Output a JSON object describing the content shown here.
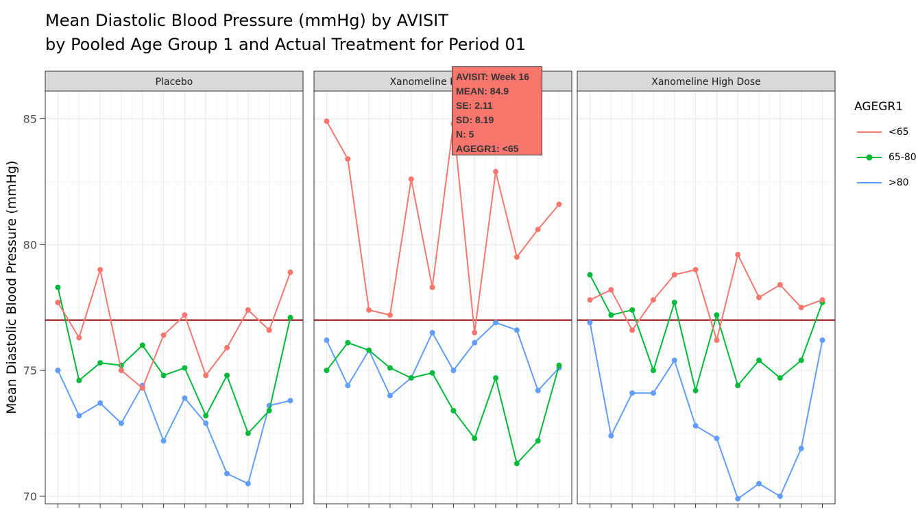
{
  "title": {
    "line1": "Mean Diastolic Blood Pressure (mmHg) by AVISIT",
    "line2": "by Pooled Age Group 1 and Actual Treatment for Period 01"
  },
  "y_axis_label": "Mean Diastolic Blood Pressure (mmHg)",
  "legend": {
    "title": "AGEGR1",
    "items": [
      {
        "label": "<65",
        "color": "#f8766d"
      },
      {
        "label": "65-80",
        "color": "#00ba38"
      },
      {
        "label": ">80",
        "color": "#619cff"
      }
    ]
  },
  "tooltip": {
    "avisit": "AVISIT: Week 16",
    "mean": "MEAN: 84.9",
    "se": "SE: 2.11",
    "sd": "SD: 8.19",
    "n": "N: 5",
    "agegr1": "AGEGR1: <65"
  },
  "chart_data": {
    "type": "line",
    "ylim": [
      69.7,
      86.1
    ],
    "yticks": [
      70,
      75,
      80,
      85
    ],
    "reference_line": 77.0,
    "reference_color": "#8b0000",
    "grid": true,
    "legend_position": "right",
    "panels": [
      {
        "name": "Placebo",
        "series": [
          {
            "name": "<65",
            "x": [
              1,
              2,
              3,
              4,
              5,
              6,
              7,
              8,
              9,
              10,
              11,
              12
            ],
            "values": [
              77.7,
              76.3,
              79.0,
              75.0,
              74.3,
              76.4,
              77.2,
              74.8,
              75.9,
              77.4,
              76.6,
              78.9
            ]
          },
          {
            "name": "65-80",
            "x": [
              1,
              2,
              3,
              4,
              5,
              6,
              7,
              8,
              9,
              10,
              11,
              12
            ],
            "values": [
              78.3,
              74.6,
              75.3,
              75.2,
              76.0,
              74.8,
              75.1,
              73.2,
              74.8,
              72.5,
              73.4,
              77.1
            ]
          },
          {
            "name": ">80",
            "x": [
              1,
              2,
              3,
              4,
              5,
              6,
              7,
              8,
              9,
              10,
              11,
              12
            ],
            "values": [
              75.0,
              73.2,
              73.7,
              72.9,
              74.4,
              72.2,
              73.9,
              72.9,
              70.9,
              70.5,
              73.6,
              73.8
            ]
          }
        ]
      },
      {
        "name": "Xanomeline Low Dose",
        "series": [
          {
            "name": "<65",
            "x": [
              1,
              2,
              3,
              4,
              5,
              6,
              7,
              8,
              9,
              10,
              11,
              12
            ],
            "values": [
              84.9,
              83.4,
              77.4,
              77.2,
              82.6,
              78.3,
              84.8,
              76.5,
              82.9,
              79.5,
              80.6,
              81.6
            ]
          },
          {
            "name": "65-80",
            "x": [
              1,
              2,
              3,
              4,
              5,
              6,
              7,
              8,
              9,
              10,
              11,
              12
            ],
            "values": [
              75.0,
              76.1,
              75.8,
              75.1,
              74.7,
              74.9,
              73.4,
              72.3,
              74.7,
              71.3,
              72.2,
              75.2
            ]
          },
          {
            "name": ">80",
            "x": [
              1,
              2,
              3,
              4,
              5,
              6,
              7,
              8,
              9,
              10,
              11,
              12
            ],
            "values": [
              76.2,
              74.4,
              75.8,
              74.0,
              74.7,
              76.5,
              75.0,
              76.1,
              76.9,
              76.6,
              74.2,
              75.1
            ]
          }
        ]
      },
      {
        "name": "Xanomeline High Dose",
        "series": [
          {
            "name": "<65",
            "x": [
              1,
              2,
              3,
              4,
              5,
              6,
              7,
              8,
              9,
              10,
              11,
              12
            ],
            "values": [
              77.8,
              78.2,
              76.6,
              77.8,
              78.8,
              79.0,
              76.2,
              79.6,
              77.9,
              78.4,
              77.5,
              77.8
            ]
          },
          {
            "name": "65-80",
            "x": [
              1,
              2,
              3,
              4,
              5,
              6,
              7,
              8,
              9,
              10,
              11,
              12
            ],
            "values": [
              78.8,
              77.2,
              77.4,
              75.0,
              77.7,
              74.2,
              77.2,
              74.4,
              75.4,
              74.7,
              75.4,
              77.7
            ]
          },
          {
            "name": ">80",
            "x": [
              1,
              2,
              3,
              4,
              5,
              6,
              7,
              8,
              9,
              10,
              11,
              12
            ],
            "values": [
              76.9,
              72.4,
              74.1,
              74.1,
              75.4,
              72.8,
              72.3,
              69.9,
              70.5,
              70.0,
              71.9,
              76.2
            ]
          }
        ]
      }
    ]
  }
}
